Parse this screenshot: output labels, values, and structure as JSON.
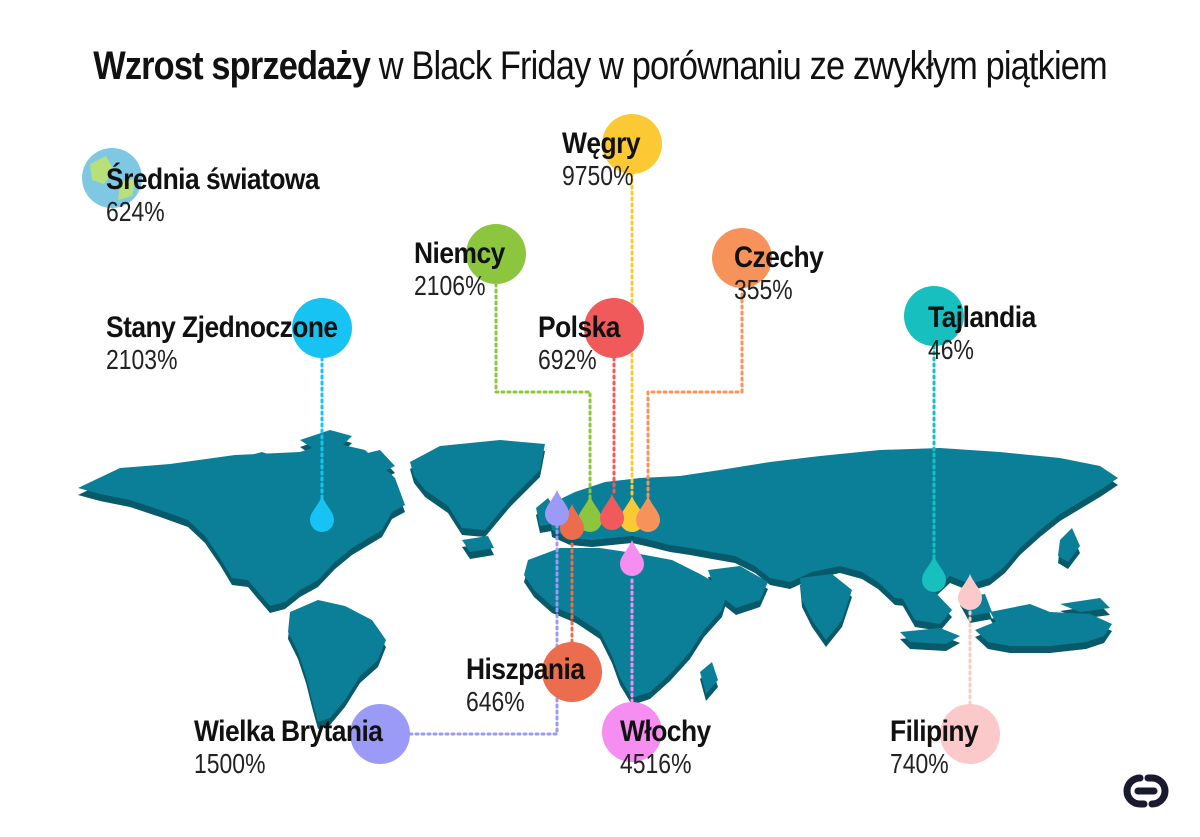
{
  "title": {
    "bold": "Wzrost sprzedaży",
    "rest": " w Black Friday w porównaniu ze zwykłym piątkiem"
  },
  "map_color": "#0b7f97",
  "map_edge": "#085a6b",
  "countries": [
    {
      "id": "swiat",
      "name": "Średnia światowa",
      "value": "624%",
      "color": "#7ec8e3",
      "icon": "globe-icon"
    },
    {
      "id": "usa",
      "name": "Stany Zjednoczone",
      "value": "2103%",
      "color": "#17c3f2",
      "icon": "pin-icon"
    },
    {
      "id": "niemcy",
      "name": "Niemcy",
      "value": "2106%",
      "color": "#8cc63f",
      "icon": "pin-icon"
    },
    {
      "id": "wegry",
      "name": "Węgry",
      "value": "9750%",
      "color": "#fbc934",
      "icon": "pin-icon"
    },
    {
      "id": "polska",
      "name": "Polska",
      "value": "692%",
      "color": "#f15a5a",
      "icon": "pin-icon"
    },
    {
      "id": "czechy",
      "name": "Czechy",
      "value": "355%",
      "color": "#f7935a",
      "icon": "pin-icon"
    },
    {
      "id": "tajlandia",
      "name": "Tajlandia",
      "value": "46%",
      "color": "#17bfbf",
      "icon": "pin-icon"
    },
    {
      "id": "hiszpania",
      "name": "Hiszpania",
      "value": "646%",
      "color": "#ec6d4e",
      "icon": "pin-icon"
    },
    {
      "id": "wlochy",
      "name": "Włochy",
      "value": "4516%",
      "color": "#f58ef0",
      "icon": "pin-icon"
    },
    {
      "id": "wb",
      "name": "Wielka Brytania",
      "value": "1500%",
      "color": "#9b9bf7",
      "icon": "pin-icon"
    },
    {
      "id": "filipiny",
      "name": "Filipiny",
      "value": "740%",
      "color": "#fbc9c9",
      "icon": "pin-icon"
    }
  ]
}
